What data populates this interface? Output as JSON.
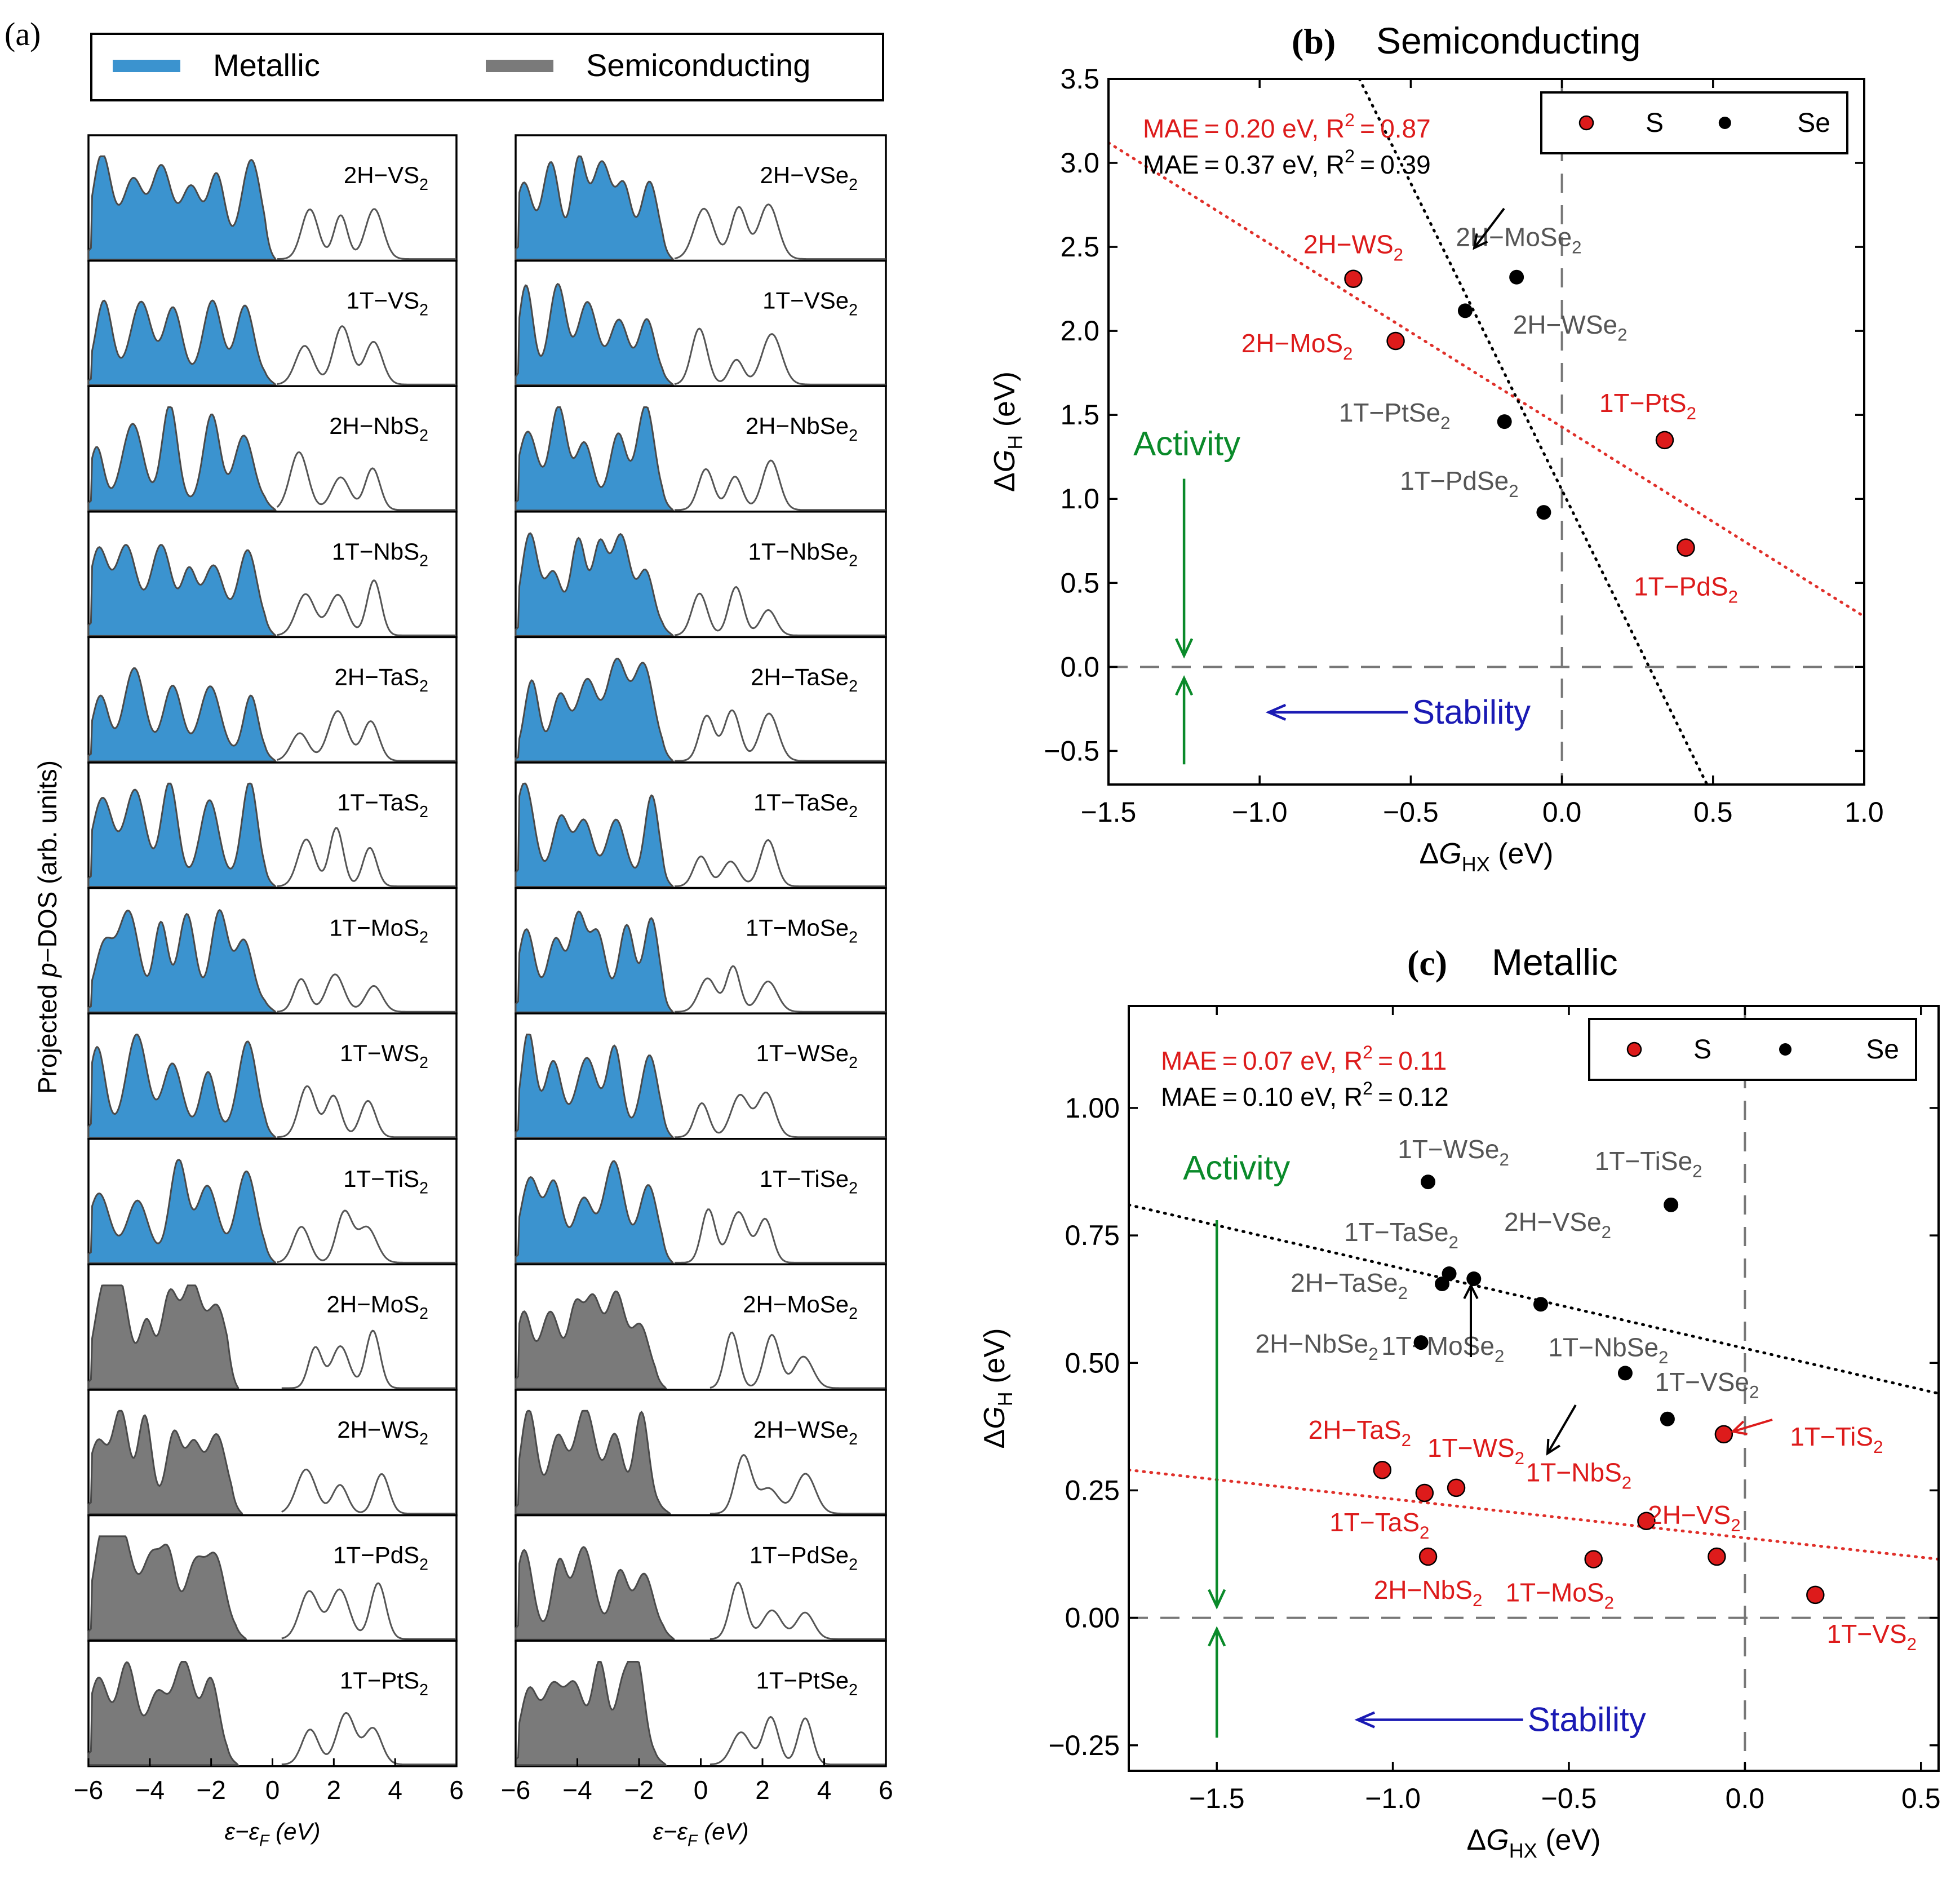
{
  "colors": {
    "metallic": "#3b93cf",
    "semiconducting": "#7a7a7a",
    "S": "#dd1b1b",
    "Se": "#000000",
    "activity": "#0a8a2a",
    "stability": "#1a1ab4",
    "fit_S": "#e0302a",
    "label_Se": "#555555"
  },
  "panel_a": {
    "tag": "(a)",
    "legend": {
      "metallic": "Metallic",
      "semiconducting": "Semiconducting"
    },
    "ylabel_pre": "Projected ",
    "ylabel_it": "p",
    "ylabel_post": "−DOS (arb. units)",
    "xlabel_pre": "ε−ε",
    "xlabel_sub": "F",
    "xlabel_post": " (eV)",
    "xticks": [
      "−6",
      "−4",
      "−2",
      "0",
      "2",
      "4",
      "6"
    ],
    "left_col": [
      {
        "label": "2H−VS",
        "sub": "2",
        "type": "metallic"
      },
      {
        "label": "1T−VS",
        "sub": "2",
        "type": "metallic"
      },
      {
        "label": "2H−NbS",
        "sub": "2",
        "type": "metallic"
      },
      {
        "label": "1T−NbS",
        "sub": "2",
        "type": "metallic"
      },
      {
        "label": "2H−TaS",
        "sub": "2",
        "type": "metallic"
      },
      {
        "label": "1T−TaS",
        "sub": "2",
        "type": "metallic"
      },
      {
        "label": "1T−MoS",
        "sub": "2",
        "type": "metallic"
      },
      {
        "label": "1T−WS",
        "sub": "2",
        "type": "metallic"
      },
      {
        "label": "1T−TiS",
        "sub": "2",
        "type": "metallic"
      },
      {
        "label": "2H−MoS",
        "sub": "2",
        "type": "semiconducting"
      },
      {
        "label": "2H−WS",
        "sub": "2",
        "type": "semiconducting"
      },
      {
        "label": "1T−PdS",
        "sub": "2",
        "type": "semiconducting"
      },
      {
        "label": "1T−PtS",
        "sub": "2",
        "type": "semiconducting"
      }
    ],
    "right_col": [
      {
        "label": "2H−VSe",
        "sub": "2",
        "type": "metallic"
      },
      {
        "label": "1T−VSe",
        "sub": "2",
        "type": "metallic"
      },
      {
        "label": "2H−NbSe",
        "sub": "2",
        "type": "metallic"
      },
      {
        "label": "1T−NbSe",
        "sub": "2",
        "type": "metallic"
      },
      {
        "label": "2H−TaSe",
        "sub": "2",
        "type": "metallic"
      },
      {
        "label": "1T−TaSe",
        "sub": "2",
        "type": "metallic"
      },
      {
        "label": "1T−MoSe",
        "sub": "2",
        "type": "metallic"
      },
      {
        "label": "1T−WSe",
        "sub": "2",
        "type": "metallic"
      },
      {
        "label": "1T−TiSe",
        "sub": "2",
        "type": "metallic"
      },
      {
        "label": "2H−MoSe",
        "sub": "2",
        "type": "semiconducting"
      },
      {
        "label": "2H−WSe",
        "sub": "2",
        "type": "semiconducting"
      },
      {
        "label": "1T−PdSe",
        "sub": "2",
        "type": "semiconducting"
      },
      {
        "label": "1T−PtSe",
        "sub": "2",
        "type": "semiconducting"
      }
    ]
  },
  "chart_data": [
    {
      "type": "scatter",
      "panel": "(b)",
      "title": "Semiconducting",
      "xlabel_pre": "ΔG",
      "xlabel_sub": "HX",
      "xlabel_post": " (eV)",
      "ylabel_pre": "ΔG",
      "ylabel_sub": "H",
      "ylabel_post": " (eV)",
      "xlim": [
        -1.5,
        1.0
      ],
      "ylim": [
        -0.7,
        3.5
      ],
      "xticks": [
        -1.5,
        -1.0,
        -0.5,
        0.0,
        0.5,
        1.0
      ],
      "xtick_labels": [
        "−1.5",
        "−1.0",
        "−0.5",
        "0.0",
        "0.5",
        "1.0"
      ],
      "yticks": [
        -0.5,
        0.0,
        0.5,
        1.0,
        1.5,
        2.0,
        2.5,
        3.0,
        3.5
      ],
      "ytick_labels": [
        "−0.5",
        "0.0",
        "0.5",
        "1.0",
        "1.5",
        "2.0",
        "2.5",
        "3.0",
        "3.5"
      ],
      "legend": {
        "S": "S",
        "Se": "Se"
      },
      "stats": [
        {
          "series": "S",
          "text": "MAE = 0.20 eV, R",
          "sup": "2",
          "tail": " = 0.87"
        },
        {
          "series": "Se",
          "text": "MAE = 0.37 eV, R",
          "sup": "2",
          "tail": " = 0.39"
        }
      ],
      "series": [
        {
          "name": "S",
          "points": [
            {
              "x": -0.69,
              "y": 2.31,
              "label": "2H−WS",
              "sub": "2"
            },
            {
              "x": -0.55,
              "y": 1.94,
              "label": "2H−MoS",
              "sub": "2"
            },
            {
              "x": 0.34,
              "y": 1.35,
              "label": "1T−PtS",
              "sub": "2"
            },
            {
              "x": 0.41,
              "y": 0.71,
              "label": "1T−PdS",
              "sub": "2"
            }
          ]
        },
        {
          "name": "Se",
          "points": [
            {
              "x": -0.32,
              "y": 2.12,
              "label": "2H−MoSe",
              "sub": "2"
            },
            {
              "x": -0.15,
              "y": 2.32,
              "label": "2H−WSe",
              "sub": "2"
            },
            {
              "x": -0.19,
              "y": 1.46,
              "label": "1T−PtSe",
              "sub": "2"
            },
            {
              "x": -0.06,
              "y": 0.92,
              "label": "1T−PdSe",
              "sub": "2"
            }
          ]
        }
      ],
      "fits": [
        {
          "series": "S",
          "x0": -1.5,
          "y0": 3.12,
          "x1": 1.0,
          "y1": 0.3
        },
        {
          "series": "Se",
          "x0": -0.67,
          "y0": 3.5,
          "x1": 0.48,
          "y1": -0.7
        }
      ],
      "hline": 0.0,
      "vline": 0.0,
      "activity": "Activity",
      "stability": "Stability"
    },
    {
      "type": "scatter",
      "panel": "(c)",
      "title": "Metallic",
      "xlabel_pre": "ΔG",
      "xlabel_sub": "HX",
      "xlabel_post": " (eV)",
      "ylabel_pre": "ΔG",
      "ylabel_sub": "H",
      "ylabel_post": " (eV)",
      "xlim": [
        -1.75,
        0.55
      ],
      "ylim": [
        -0.3,
        1.2
      ],
      "xticks": [
        -1.5,
        -1.0,
        -0.5,
        0.0,
        0.5
      ],
      "xtick_labels": [
        "−1.5",
        "−1.0",
        "−0.5",
        "0.0",
        "0.5"
      ],
      "yticks": [
        -0.25,
        0.0,
        0.25,
        0.5,
        0.75,
        1.0
      ],
      "ytick_labels": [
        "−0.25",
        "0.00",
        "0.25",
        "0.50",
        "0.75",
        "1.00"
      ],
      "legend": {
        "S": "S",
        "Se": "Se"
      },
      "stats": [
        {
          "series": "S",
          "text": "MAE = 0.07 eV, R",
          "sup": "2",
          "tail": " = 0.11"
        },
        {
          "series": "Se",
          "text": "MAE = 0.10 eV, R",
          "sup": "2",
          "tail": " = 0.12"
        }
      ],
      "series": [
        {
          "name": "S",
          "points": [
            {
              "x": -1.03,
              "y": 0.29,
              "label": "2H−TaS",
              "sub": "2"
            },
            {
              "x": -0.91,
              "y": 0.245,
              "label": "1T−TaS",
              "sub": "2"
            },
            {
              "x": -0.82,
              "y": 0.255,
              "label": "1T−WS",
              "sub": "2"
            },
            {
              "x": -0.9,
              "y": 0.12,
              "label": "2H−NbS",
              "sub": "2"
            },
            {
              "x": -0.43,
              "y": 0.115,
              "label": "1T−MoS",
              "sub": "2"
            },
            {
              "x": -0.28,
              "y": 0.19,
              "label": "1T−NbS",
              "sub": "2"
            },
            {
              "x": -0.08,
              "y": 0.12,
              "label": "2H−VS",
              "sub": "2"
            },
            {
              "x": -0.06,
              "y": 0.36,
              "label": "1T−TiS",
              "sub": "2"
            },
            {
              "x": 0.2,
              "y": 0.045,
              "label": "1T−VS",
              "sub": "2"
            }
          ]
        },
        {
          "name": "Se",
          "points": [
            {
              "x": -0.9,
              "y": 0.855,
              "label": "1T−WSe",
              "sub": "2"
            },
            {
              "x": -0.21,
              "y": 0.81,
              "label": "1T−TiSe",
              "sub": "2"
            },
            {
              "x": -0.84,
              "y": 0.675,
              "label": "1T−TaSe",
              "sub": "2"
            },
            {
              "x": -0.86,
              "y": 0.655,
              "label": "2H−TaSe",
              "sub": "2"
            },
            {
              "x": -0.77,
              "y": 0.665,
              "label": "1T−MoSe",
              "sub": "2"
            },
            {
              "x": -0.58,
              "y": 0.615,
              "label": "2H−VSe",
              "sub": "2"
            },
            {
              "x": -0.92,
              "y": 0.54,
              "label": "2H−NbSe",
              "sub": "2"
            },
            {
              "x": -0.34,
              "y": 0.48,
              "label": "1T−NbSe",
              "sub": "2"
            },
            {
              "x": -0.22,
              "y": 0.39,
              "label": "1T−VSe",
              "sub": "2"
            }
          ]
        }
      ],
      "fits": [
        {
          "series": "S",
          "x0": -1.75,
          "y0": 0.29,
          "x1": 0.55,
          "y1": 0.115
        },
        {
          "series": "Se",
          "x0": -1.75,
          "y0": 0.81,
          "x1": 0.55,
          "y1": 0.44
        }
      ],
      "hline": 0.0,
      "vline": 0.0,
      "activity": "Activity",
      "stability": "Stability"
    }
  ]
}
